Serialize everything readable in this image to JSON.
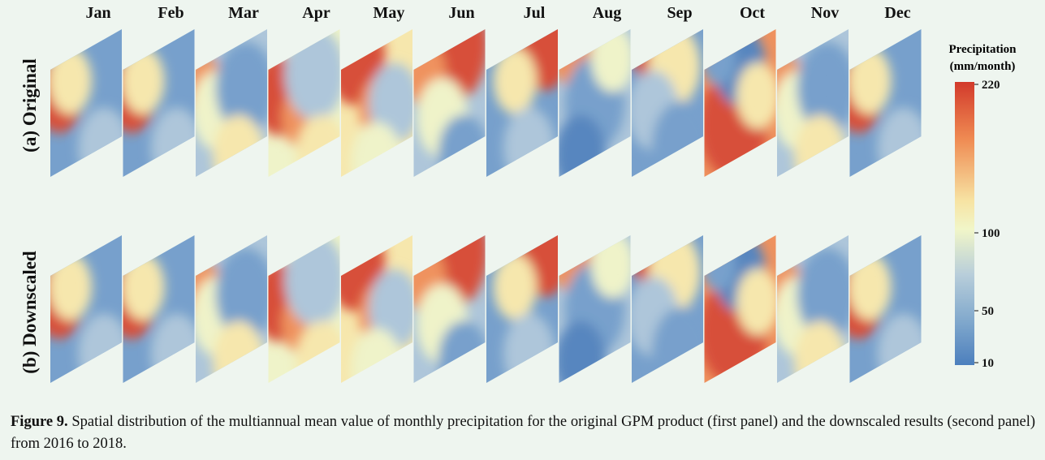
{
  "months": [
    "Jan",
    "Feb",
    "Mar",
    "Apr",
    "May",
    "Jun",
    "Jul",
    "Aug",
    "Sep",
    "Oct",
    "Nov",
    "Dec"
  ],
  "panels": [
    {
      "label": "(a) Original",
      "key": "original"
    },
    {
      "label": "(b) Downscaled",
      "key": "downscaled"
    }
  ],
  "colorbar": {
    "title_line1": "Precipitation",
    "title_line2": "(mm/month)",
    "ticks": [
      "220",
      "100",
      "50",
      "10"
    ],
    "colors": [
      "#d23a2b",
      "#ef8a52",
      "#f7e3a3",
      "#f1f6c8",
      "#b8ceda",
      "#7fa7cc",
      "#4c7fbd"
    ]
  },
  "caption": {
    "label": "Figure 9.",
    "text": " Spatial distribution of the multiannual mean value of monthly precipitation for the original GPM product (first panel) and the downscaled results (second panel) from 2016 to 2018."
  },
  "map_patterns": {
    "Jan": "red-west",
    "Feb": "red-west",
    "Mar": "red-west-mild",
    "Apr": "red-west-yellow",
    "May": "red-north",
    "Jun": "red-north-strong",
    "Jul": "red-northeast",
    "Aug": "red-northwest-mild",
    "Sep": "red-north-band",
    "Oct": "red-south",
    "Nov": "red-west-mild",
    "Dec": "red-west"
  }
}
